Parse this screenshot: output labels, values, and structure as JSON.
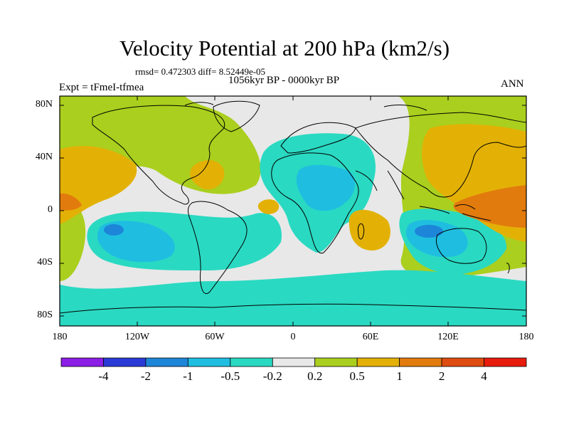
{
  "header": {
    "title": "Velocity Potential at 200 hPa (km2/s)",
    "stats": "rmsd= 0.472303 diff= 8.52449e-05",
    "period": "1056kyr BP - 0000kyr BP",
    "experiment": "Expt = tFmeI-tfmea",
    "season": "ANN"
  },
  "axes": {
    "lat_labels": [
      "80N",
      "40N",
      "0",
      "40S",
      "80S"
    ],
    "lon_labels": [
      "180",
      "120W",
      "60W",
      "0",
      "60E",
      "120E",
      "180"
    ]
  },
  "colorbar": {
    "labels": [
      "-4",
      "-2",
      "-1",
      "-0.5",
      "-0.2",
      "0.2",
      "0.5",
      "1",
      "2",
      "4"
    ],
    "colors": [
      "#8c1ee6",
      "#2a3ad6",
      "#1d86d9",
      "#1fbee0",
      "#2ad9c2",
      "#e8e8e8",
      "#aacf1e",
      "#e3b106",
      "#e27b0e",
      "#df4c10",
      "#e81c0c"
    ]
  },
  "legend_palette": {
    "neg_strong": "#1d86d9",
    "neg_mid": "#1fbee0",
    "neg_weak": "#2ad9c2",
    "neutral": "#e8e8e8",
    "pos_weak": "#aacf1e",
    "pos_mid": "#e3b106",
    "pos_strong": "#e27b0e"
  }
}
